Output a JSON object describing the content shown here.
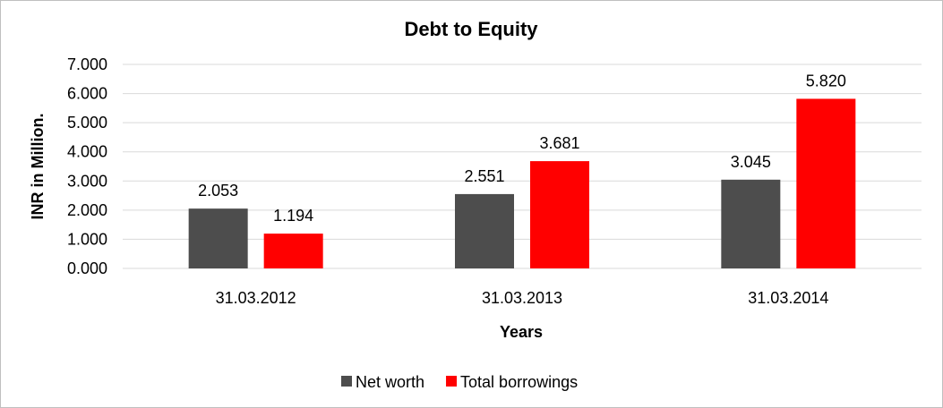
{
  "chart_data": {
    "type": "bar",
    "title": "Debt to Equity",
    "xlabel": "Years",
    "ylabel": "INR in Million.",
    "categories": [
      "31.03.2012",
      "31.03.2013",
      "31.03.2014"
    ],
    "series": [
      {
        "name": "Net worth",
        "color": "#4d4d4d",
        "values": [
          2.053,
          2.551,
          3.045
        ],
        "labels": [
          "2.053",
          "2.551",
          "3.045"
        ]
      },
      {
        "name": "Total borrowings",
        "color": "#ff0000",
        "values": [
          1.194,
          3.681,
          5.82
        ],
        "labels": [
          "1.194",
          "3.681",
          "5.820"
        ]
      }
    ],
    "ylim": [
      0,
      7
    ],
    "yticks": [
      "0.000",
      "1.000",
      "2.000",
      "3.000",
      "4.000",
      "5.000",
      "6.000",
      "7.000"
    ],
    "grid": true,
    "legend": "bottom"
  }
}
